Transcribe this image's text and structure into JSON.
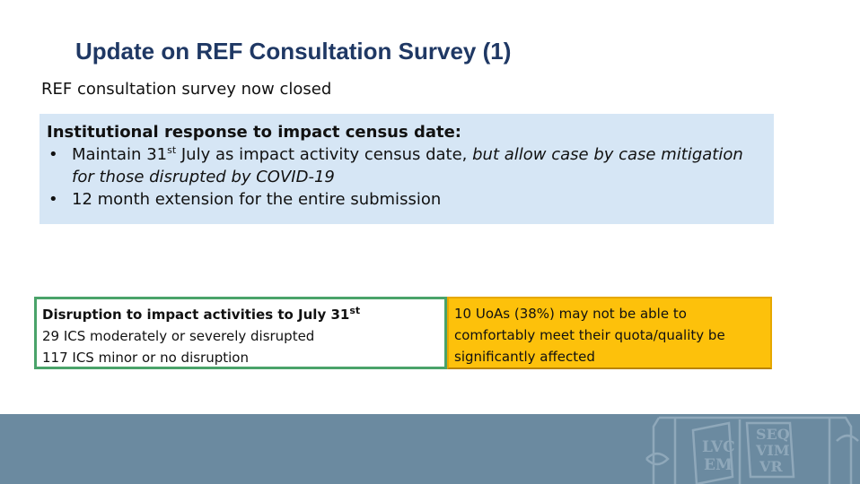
{
  "title": "Update on REF Consultation Survey (1)",
  "subtitle": "REF consultation survey now closed",
  "response": {
    "heading": "Institutional response to impact census date:",
    "bullet1": {
      "pre": "Maintain 31",
      "sup": "st",
      "mid": " July as impact activity census date, ",
      "italic": "but allow case by case mitigation for those disrupted by COVID-19"
    },
    "bullet2": "12 month extension for the entire submission"
  },
  "disruption": {
    "heading_pre": "Disruption to impact activities to July 31",
    "heading_sup": "st",
    "line1": "29 ICS moderately or severely disrupted",
    "line2": "117 ICS minor or no disruption"
  },
  "uoa_note": "10 UoAs (38%) may not be able to comfortably meet their quota/quality be significantly affected",
  "crest": {
    "text_left": [
      "LVC",
      "EM"
    ],
    "text_right": [
      "SEQ",
      "VIM",
      "VR"
    ]
  },
  "colors": {
    "title": "#1f3864",
    "response_bg": "#d6e6f5",
    "disruption_border": "#4aa36a",
    "uoa_bg": "#fdc10b",
    "footer": "#6b8aa0"
  }
}
